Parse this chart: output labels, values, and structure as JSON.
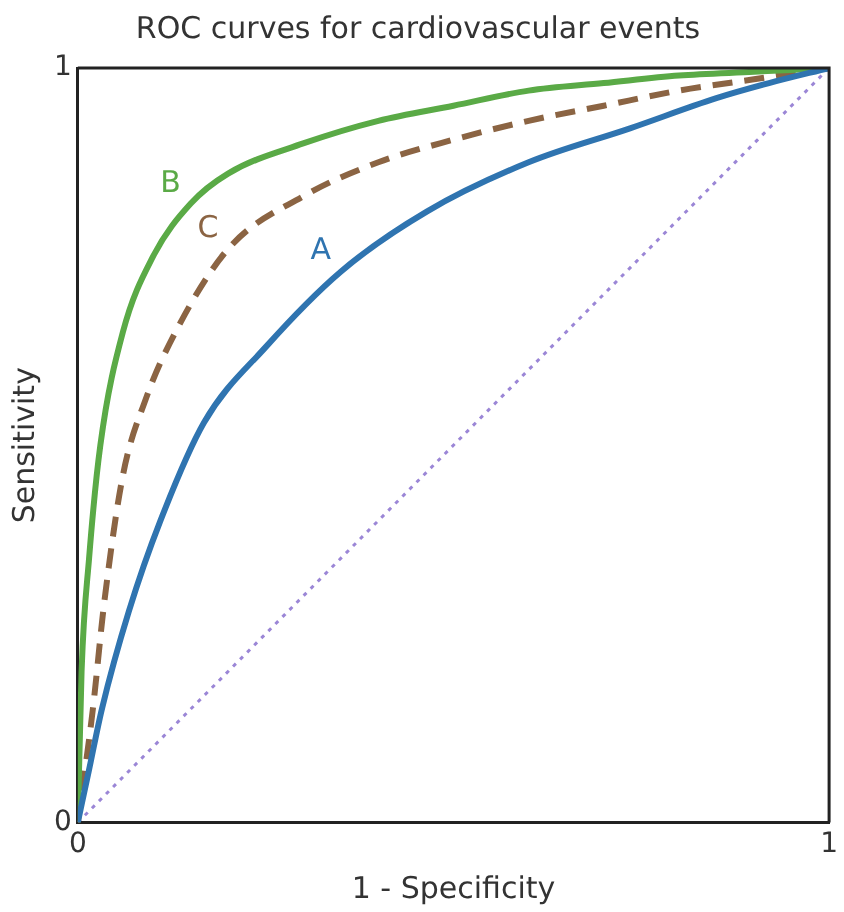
{
  "chart_data": {
    "type": "line",
    "title": "ROC curves for cardiovascular events",
    "xlabel": "1 - Specificity",
    "ylabel": "Sensitivity",
    "xlim": [
      0,
      1
    ],
    "ylim": [
      0,
      1
    ],
    "xticks": [
      0,
      1
    ],
    "yticks": [
      0,
      1
    ],
    "legend": false,
    "marker": "none",
    "series": [
      {
        "name": "A",
        "color": "#2f74b0",
        "line_style": "solid",
        "x": [
          0,
          0.015,
          0.032,
          0.068,
          0.11,
          0.168,
          0.25,
          0.35,
          0.465,
          0.6,
          0.735,
          0.85,
          0.92,
          1
        ],
        "values": [
          0,
          0.07,
          0.15,
          0.28,
          0.4,
          0.53,
          0.63,
          0.73,
          0.81,
          0.875,
          0.92,
          0.96,
          0.98,
          1
        ]
      },
      {
        "name": "B",
        "color": "#5aaa46",
        "line_style": "solid",
        "x": [
          0,
          0.005,
          0.015,
          0.03,
          0.06,
          0.1,
          0.15,
          0.2,
          0.3,
          0.4,
          0.5,
          0.6,
          0.7,
          0.8,
          0.9,
          1
        ],
        "values": [
          0,
          0.2,
          0.35,
          0.5,
          0.65,
          0.75,
          0.82,
          0.86,
          0.9,
          0.93,
          0.95,
          0.97,
          0.98,
          0.99,
          0.995,
          1
        ]
      },
      {
        "name": "C",
        "color": "#8b6443",
        "line_style": "dashed",
        "x": [
          0,
          0.02,
          0.035,
          0.06,
          0.09,
          0.13,
          0.2,
          0.3,
          0.4,
          0.5,
          0.6,
          0.7,
          0.8,
          0.9,
          1
        ],
        "values": [
          0,
          0.15,
          0.29,
          0.46,
          0.56,
          0.65,
          0.76,
          0.83,
          0.875,
          0.905,
          0.93,
          0.95,
          0.97,
          0.985,
          1
        ]
      },
      {
        "color": "#9b86d6",
        "line_style": "dotted",
        "x": [
          0,
          1
        ],
        "values": [
          0,
          1
        ]
      }
    ]
  }
}
